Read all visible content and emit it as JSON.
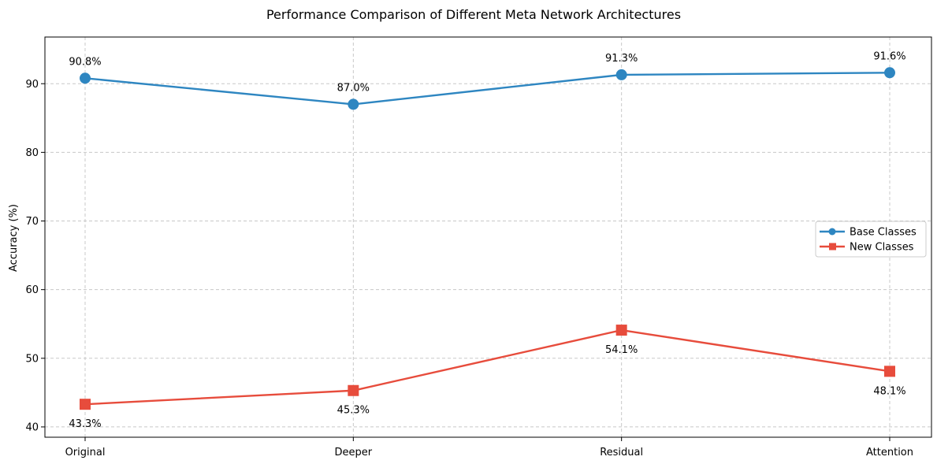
{
  "chart_data": {
    "type": "line",
    "title": "Performance Comparison of Different Meta Network Architectures",
    "xlabel": "",
    "ylabel": "Accuracy (%)",
    "categories": [
      "Original",
      "Deeper",
      "Residual",
      "Attention"
    ],
    "ylim": [
      38.5,
      96.8
    ],
    "yticks": [
      40,
      50,
      60,
      70,
      80,
      90
    ],
    "grid": true,
    "legend_position": "center-right",
    "series": [
      {
        "name": "Base Classes",
        "values": [
          90.8,
          87.0,
          91.3,
          91.6
        ],
        "labels": [
          "90.8%",
          "87.0%",
          "91.3%",
          "91.6%"
        ],
        "color": "#2e86c1",
        "marker": "circle",
        "label_position": "above"
      },
      {
        "name": "New Classes",
        "values": [
          43.3,
          45.3,
          54.1,
          48.1
        ],
        "labels": [
          "43.3%",
          "45.3%",
          "54.1%",
          "48.1%"
        ],
        "color": "#e74c3c",
        "marker": "square",
        "label_position": "below"
      }
    ]
  }
}
